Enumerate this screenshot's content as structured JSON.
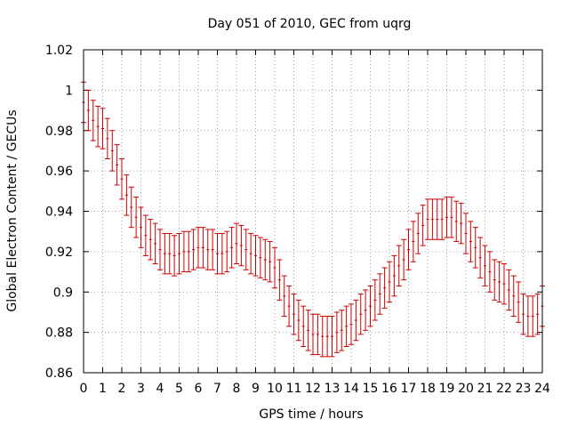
{
  "chart_data": {
    "type": "scatter",
    "title": "Day 051 of 2010, GEC from uqrg",
    "xlabel": "GPS time / hours",
    "ylabel": "Global Electron Content / GECUs",
    "xlim": [
      0,
      24
    ],
    "ylim": [
      0.86,
      1.02
    ],
    "xticks": [
      "0",
      "1",
      "2",
      "3",
      "4",
      "5",
      "6",
      "7",
      "8",
      "9",
      "10",
      "11",
      "12",
      "13",
      "14",
      "15",
      "16",
      "17",
      "18",
      "19",
      "20",
      "21",
      "22",
      "23",
      "24"
    ],
    "yticks": [
      "0.86",
      "0.88",
      "0.9",
      "0.92",
      "0.94",
      "0.96",
      "0.98",
      "1",
      "1.02"
    ],
    "grid": true,
    "series_color": "#cc0000",
    "series": [
      {
        "name": "GEC",
        "error": 0.01,
        "x": [
          0,
          0.25,
          0.5,
          0.75,
          1,
          1.25,
          1.5,
          1.75,
          2,
          2.25,
          2.5,
          2.75,
          3,
          3.25,
          3.5,
          3.75,
          4,
          4.25,
          4.5,
          4.75,
          5,
          5.25,
          5.5,
          5.75,
          6,
          6.25,
          6.5,
          6.75,
          7,
          7.25,
          7.5,
          7.75,
          8,
          8.25,
          8.5,
          8.75,
          9,
          9.25,
          9.5,
          9.75,
          10,
          10.25,
          10.5,
          10.75,
          11,
          11.25,
          11.5,
          11.75,
          12,
          12.25,
          12.5,
          12.75,
          13,
          13.25,
          13.5,
          13.75,
          14,
          14.25,
          14.5,
          14.75,
          15,
          15.25,
          15.5,
          15.75,
          16,
          16.25,
          16.5,
          16.75,
          17,
          17.25,
          17.5,
          17.75,
          18,
          18.25,
          18.5,
          18.75,
          19,
          19.25,
          19.5,
          19.75,
          20,
          20.25,
          20.5,
          20.75,
          21,
          21.25,
          21.5,
          21.75,
          22,
          22.25,
          22.5,
          22.75,
          23,
          23.25,
          23.5,
          23.75,
          24
        ],
        "y": [
          0.994,
          0.99,
          0.985,
          0.982,
          0.981,
          0.976,
          0.97,
          0.963,
          0.956,
          0.948,
          0.942,
          0.937,
          0.932,
          0.928,
          0.926,
          0.924,
          0.921,
          0.919,
          0.919,
          0.918,
          0.919,
          0.92,
          0.92,
          0.921,
          0.922,
          0.922,
          0.921,
          0.921,
          0.919,
          0.919,
          0.92,
          0.922,
          0.924,
          0.923,
          0.921,
          0.919,
          0.918,
          0.917,
          0.916,
          0.915,
          0.912,
          0.906,
          0.898,
          0.893,
          0.889,
          0.886,
          0.883,
          0.881,
          0.879,
          0.879,
          0.878,
          0.878,
          0.878,
          0.88,
          0.881,
          0.883,
          0.884,
          0.886,
          0.889,
          0.891,
          0.893,
          0.896,
          0.899,
          0.902,
          0.905,
          0.908,
          0.913,
          0.916,
          0.921,
          0.925,
          0.929,
          0.933,
          0.936,
          0.936,
          0.936,
          0.936,
          0.937,
          0.937,
          0.935,
          0.934,
          0.929,
          0.925,
          0.922,
          0.917,
          0.913,
          0.91,
          0.906,
          0.905,
          0.904,
          0.901,
          0.898,
          0.895,
          0.889,
          0.888,
          0.888,
          0.889,
          0.893
        ]
      }
    ]
  }
}
